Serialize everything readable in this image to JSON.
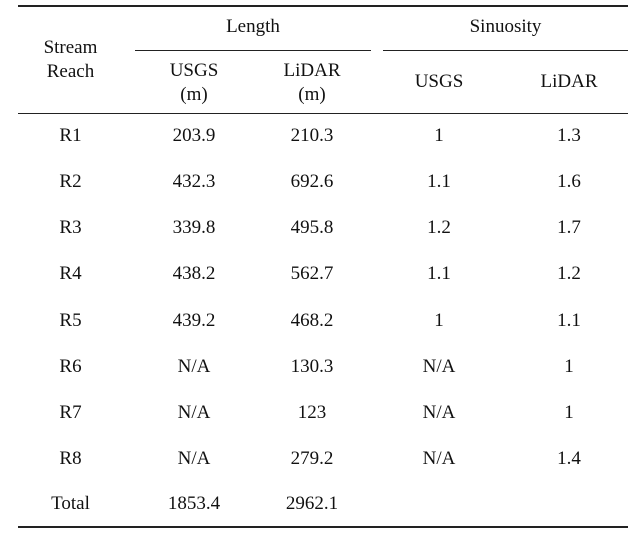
{
  "header": {
    "stream_reach": [
      "Stream",
      "Reach"
    ],
    "length": "Length",
    "sinuosity": "Sinuosity",
    "length_usgs": [
      "USGS",
      "(m)"
    ],
    "length_lidar": [
      "LiDAR",
      "(m)"
    ],
    "sinuosity_usgs": "USGS",
    "sinuosity_lidar": "LiDAR"
  },
  "rows": [
    {
      "reach": "R1",
      "len_usgs": "203.9",
      "len_lidar": "210.3",
      "sin_usgs": "1",
      "sin_lidar": "1.3"
    },
    {
      "reach": "R2",
      "len_usgs": "432.3",
      "len_lidar": "692.6",
      "sin_usgs": "1.1",
      "sin_lidar": "1.6"
    },
    {
      "reach": "R3",
      "len_usgs": "339.8",
      "len_lidar": "495.8",
      "sin_usgs": "1.2",
      "sin_lidar": "1.7"
    },
    {
      "reach": "R4",
      "len_usgs": "438.2",
      "len_lidar": "562.7",
      "sin_usgs": "1.1",
      "sin_lidar": "1.2"
    },
    {
      "reach": "R5",
      "len_usgs": "439.2",
      "len_lidar": "468.2",
      "sin_usgs": "1",
      "sin_lidar": "1.1"
    },
    {
      "reach": "R6",
      "len_usgs": "N/A",
      "len_lidar": "130.3",
      "sin_usgs": "N/A",
      "sin_lidar": "1"
    },
    {
      "reach": "R7",
      "len_usgs": "N/A",
      "len_lidar": "123",
      "sin_usgs": "N/A",
      "sin_lidar": "1"
    },
    {
      "reach": "R8",
      "len_usgs": "N/A",
      "len_lidar": "279.2",
      "sin_usgs": "N/A",
      "sin_lidar": "1.4"
    },
    {
      "reach": "Total",
      "len_usgs": "1853.4",
      "len_lidar": "2962.1",
      "sin_usgs": "",
      "sin_lidar": ""
    }
  ]
}
